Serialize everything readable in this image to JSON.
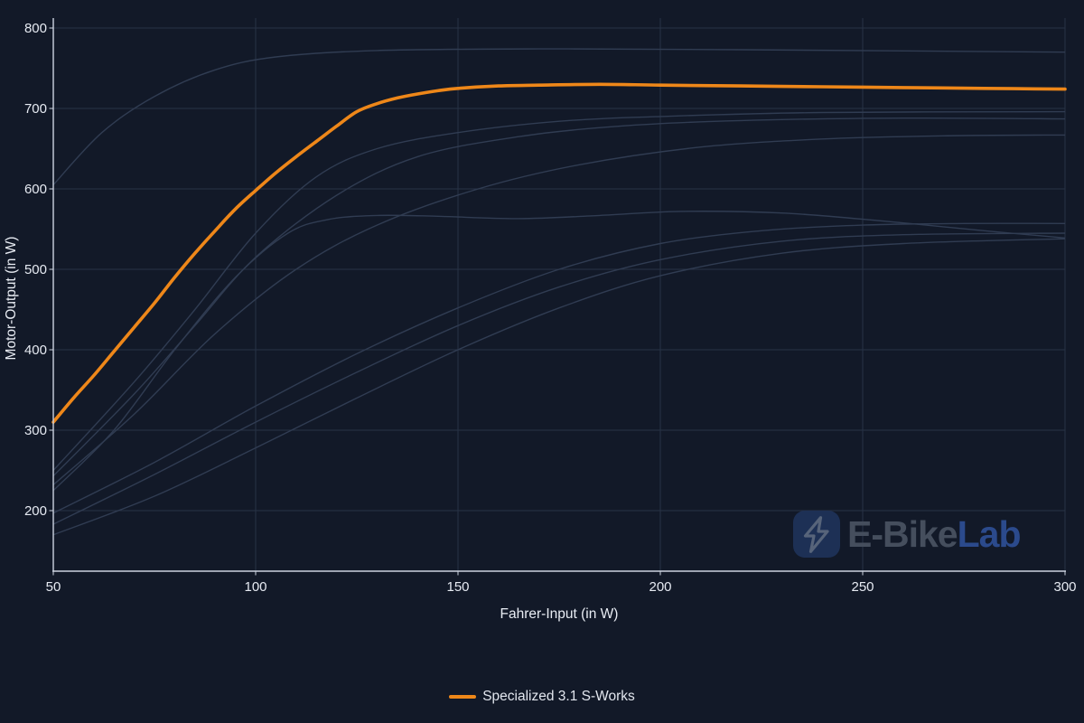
{
  "page": {
    "background": "#121928"
  },
  "axes": {
    "tick_color": "#e6eaf2",
    "axis_line_color": "#ccd3e0",
    "grid_color": "#283246"
  },
  "watermark": {
    "brand_primary": "E-Bike",
    "brand_secondary": "Lab",
    "icon": "lightning-bolt-icon",
    "badge_color": "#1d3055",
    "bolt_color": "#57647a",
    "primary_text_color": "#454e5d",
    "secondary_text_color": "#2b4a8c"
  },
  "legend": {
    "items": [
      {
        "label": "Specialized 3.1 S-Works",
        "color": "#ee8719"
      }
    ]
  },
  "chart_data": {
    "type": "line",
    "title": "",
    "xlabel": "Fahrer-Input (in W)",
    "ylabel": "Motor-Output (in W)",
    "x_ticks": [
      50,
      100,
      150,
      200,
      250,
      300
    ],
    "y_ticks": [
      200,
      300,
      400,
      500,
      600,
      700,
      800
    ],
    "xlim": [
      50,
      300
    ],
    "ylim": [
      125,
      812
    ],
    "grid": true,
    "legend_position": "bottom-center",
    "series": [
      {
        "name": "Specialized 3.1 S-Works",
        "color": "#ee8719",
        "width": 3.6,
        "points": [
          [
            50,
            310
          ],
          [
            55,
            340
          ],
          [
            60,
            368
          ],
          [
            65,
            398
          ],
          [
            70,
            428
          ],
          [
            75,
            458
          ],
          [
            80,
            490
          ],
          [
            85,
            520
          ],
          [
            90,
            548
          ],
          [
            95,
            575
          ],
          [
            100,
            598
          ],
          [
            105,
            620
          ],
          [
            110,
            640
          ],
          [
            115,
            659
          ],
          [
            120,
            678
          ],
          [
            125,
            696
          ],
          [
            130,
            706
          ],
          [
            135,
            713
          ],
          [
            140,
            718
          ],
          [
            145,
            722
          ],
          [
            150,
            725
          ],
          [
            160,
            728
          ],
          [
            170,
            729
          ],
          [
            185,
            730
          ],
          [
            200,
            729
          ],
          [
            220,
            728
          ],
          [
            240,
            727
          ],
          [
            260,
            726
          ],
          [
            280,
            725
          ],
          [
            300,
            724
          ]
        ]
      }
    ],
    "background_series": [
      {
        "name": "",
        "points": [
          [
            50,
            605
          ],
          [
            62,
            670
          ],
          [
            75,
            715
          ],
          [
            90,
            748
          ],
          [
            105,
            764
          ],
          [
            130,
            772
          ],
          [
            170,
            774
          ],
          [
            220,
            773
          ],
          [
            300,
            770
          ]
        ]
      },
      {
        "name": "",
        "points": [
          [
            50,
            250
          ],
          [
            70,
            360
          ],
          [
            85,
            450
          ],
          [
            100,
            545
          ],
          [
            115,
            615
          ],
          [
            130,
            650
          ],
          [
            150,
            670
          ],
          [
            175,
            684
          ],
          [
            200,
            690
          ],
          [
            240,
            695
          ],
          [
            300,
            696
          ]
        ]
      },
      {
        "name": "",
        "points": [
          [
            50,
            243
          ],
          [
            70,
            345
          ],
          [
            85,
            430
          ],
          [
            100,
            515
          ],
          [
            120,
            592
          ],
          [
            140,
            640
          ],
          [
            165,
            665
          ],
          [
            190,
            678
          ],
          [
            220,
            685
          ],
          [
            260,
            688
          ],
          [
            300,
            687
          ]
        ]
      },
      {
        "name": "",
        "points": [
          [
            50,
            232
          ],
          [
            70,
            320
          ],
          [
            90,
            420
          ],
          [
            110,
            500
          ],
          [
            130,
            555
          ],
          [
            155,
            600
          ],
          [
            180,
            630
          ],
          [
            210,
            652
          ],
          [
            240,
            662
          ],
          [
            270,
            666
          ],
          [
            300,
            667
          ]
        ]
      },
      {
        "name": "",
        "points": [
          [
            50,
            225
          ],
          [
            65,
            300
          ],
          [
            80,
            400
          ],
          [
            95,
            490
          ],
          [
            108,
            545
          ],
          [
            118,
            562
          ],
          [
            130,
            567
          ],
          [
            145,
            566
          ],
          [
            165,
            563
          ],
          [
            185,
            567
          ],
          [
            205,
            572
          ],
          [
            230,
            570
          ],
          [
            255,
            560
          ],
          [
            280,
            548
          ],
          [
            300,
            539
          ]
        ]
      },
      {
        "name": "",
        "points": [
          [
            50,
            197
          ],
          [
            75,
            260
          ],
          [
            100,
            330
          ],
          [
            125,
            395
          ],
          [
            150,
            452
          ],
          [
            175,
            500
          ],
          [
            200,
            532
          ],
          [
            225,
            548
          ],
          [
            250,
            555
          ],
          [
            275,
            557
          ],
          [
            300,
            557
          ]
        ]
      },
      {
        "name": "",
        "points": [
          [
            50,
            183
          ],
          [
            75,
            245
          ],
          [
            100,
            310
          ],
          [
            125,
            372
          ],
          [
            150,
            430
          ],
          [
            175,
            478
          ],
          [
            200,
            512
          ],
          [
            230,
            535
          ],
          [
            260,
            543
          ],
          [
            300,
            545
          ]
        ]
      },
      {
        "name": "",
        "points": [
          [
            50,
            170
          ],
          [
            75,
            218
          ],
          [
            100,
            278
          ],
          [
            125,
            340
          ],
          [
            150,
            400
          ],
          [
            175,
            452
          ],
          [
            200,
            492
          ],
          [
            230,
            520
          ],
          [
            260,
            532
          ],
          [
            300,
            538
          ]
        ]
      }
    ],
    "background_series_color": "#303c52"
  }
}
